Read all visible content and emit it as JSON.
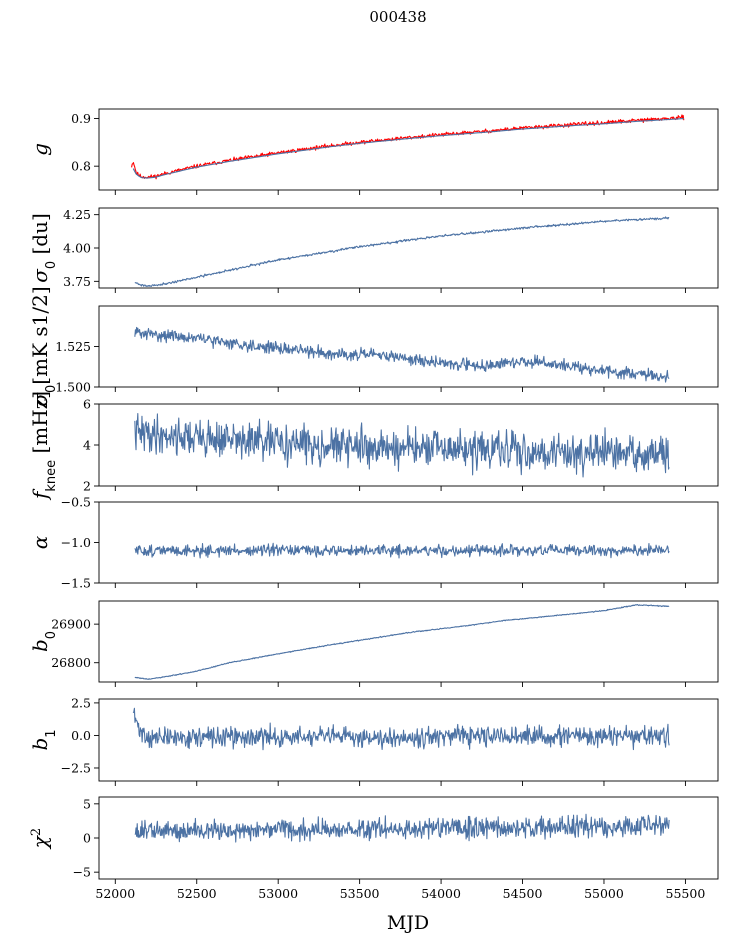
{
  "figure": {
    "title": "000438",
    "xlabel": "MJD"
  },
  "colors": {
    "series": "#4c72a4",
    "fit": "#ff0000"
  },
  "chart_data": [
    {
      "type": "line",
      "ylabel": "g",
      "ylabel_sub": "",
      "ylabel_sup": "",
      "ylabel_rest": "",
      "xlim": [
        51900,
        55700
      ],
      "ylim": [
        0.75,
        0.92
      ],
      "yticks": [
        0.8,
        0.9
      ],
      "ytick_labels": [
        "0.8",
        "0.9"
      ],
      "series": [
        {
          "style": "fit",
          "noise": 0.002,
          "seed": 11,
          "x": [
            52100,
            52110,
            52130,
            52160,
            52200,
            52250,
            52300,
            52400,
            52500,
            52700,
            53000,
            53300,
            53500,
            53800,
            54000,
            54300,
            54500,
            54800,
            55000,
            55200,
            55400,
            55490
          ],
          "y": [
            0.8,
            0.81,
            0.785,
            0.778,
            0.777,
            0.779,
            0.784,
            0.792,
            0.8,
            0.812,
            0.828,
            0.842,
            0.85,
            0.86,
            0.866,
            0.874,
            0.88,
            0.887,
            0.891,
            0.896,
            0.9,
            0.902
          ]
        },
        {
          "style": "data",
          "noise": 0.0,
          "seed": 12,
          "x": [
            52110,
            52130,
            52160,
            52200,
            52250,
            52300,
            52400,
            52500,
            52700,
            53000,
            53300,
            53500,
            53800,
            54000,
            54300,
            54500,
            54800,
            55000,
            55200,
            55400,
            55490
          ],
          "y": [
            0.795,
            0.782,
            0.776,
            0.775,
            0.777,
            0.782,
            0.79,
            0.798,
            0.81,
            0.826,
            0.84,
            0.848,
            0.858,
            0.864,
            0.872,
            0.878,
            0.885,
            0.889,
            0.894,
            0.898,
            0.9
          ]
        }
      ]
    },
    {
      "type": "line",
      "ylabel": "σ",
      "ylabel_sub": "0",
      "ylabel_sup": "",
      "ylabel_rest": " [du]",
      "xlim": [
        51900,
        55700
      ],
      "ylim": [
        3.7,
        4.3
      ],
      "yticks": [
        3.75,
        4.0,
        4.25
      ],
      "ytick_labels": [
        "3.75",
        "4.00",
        "4.25"
      ],
      "series": [
        {
          "style": "data",
          "noise": 0.004,
          "seed": 21,
          "x": [
            52120,
            52150,
            52200,
            52300,
            52500,
            52800,
            53000,
            53300,
            53500,
            54000,
            54500,
            55000,
            55400
          ],
          "y": [
            3.745,
            3.725,
            3.715,
            3.73,
            3.78,
            3.86,
            3.91,
            3.97,
            4.01,
            4.09,
            4.15,
            4.2,
            4.225
          ]
        }
      ]
    },
    {
      "type": "line",
      "ylabel": "σ",
      "ylabel_sub": "0",
      "ylabel_sup": "",
      "ylabel_rest": "[mK s1/2]",
      "xlim": [
        51900,
        55700
      ],
      "ylim": [
        1.5,
        1.55
      ],
      "yticks": [
        1.5,
        1.525
      ],
      "ytick_labels": [
        "1.500",
        "1.525"
      ],
      "series": [
        {
          "style": "data",
          "noise": 0.0018,
          "seed": 31,
          "x": [
            52120,
            52150,
            52300,
            52500,
            52800,
            53000,
            53300,
            53500,
            53700,
            53900,
            54100,
            54300,
            54500,
            54700,
            54900,
            55100,
            55300,
            55400
          ],
          "y": [
            1.535,
            1.533,
            1.532,
            1.53,
            1.526,
            1.524,
            1.521,
            1.52,
            1.519,
            1.516,
            1.514,
            1.513,
            1.516,
            1.514,
            1.511,
            1.509,
            1.507,
            1.506
          ]
        }
      ]
    },
    {
      "type": "line",
      "ylabel": "f",
      "ylabel_sub": "knee",
      "ylabel_sup": "",
      "ylabel_rest": " [mHz]",
      "xlim": [
        51900,
        55700
      ],
      "ylim": [
        2,
        6
      ],
      "yticks": [
        2,
        4,
        6
      ],
      "ytick_labels": [
        "2",
        "4",
        "6"
      ],
      "series": [
        {
          "style": "data",
          "noise": 0.45,
          "seed": 41,
          "x": [
            52120,
            52300,
            52600,
            53000,
            53500,
            54000,
            54500,
            55000,
            55400
          ],
          "y": [
            4.6,
            4.5,
            4.3,
            4.1,
            3.9,
            3.8,
            3.7,
            3.6,
            3.5
          ]
        }
      ]
    },
    {
      "type": "line",
      "ylabel": "α",
      "ylabel_sub": "",
      "ylabel_sup": "",
      "ylabel_rest": "",
      "xlim": [
        51900,
        55700
      ],
      "ylim": [
        -1.5,
        -0.5
      ],
      "yticks": [
        -1.5,
        -1.0,
        -0.5
      ],
      "ytick_labels": [
        "−1.5",
        "−1.0",
        "−0.5"
      ],
      "series": [
        {
          "style": "data",
          "noise": 0.035,
          "seed": 51,
          "x": [
            52120,
            55400
          ],
          "y": [
            -1.1,
            -1.1
          ]
        }
      ]
    },
    {
      "type": "line",
      "ylabel": "b",
      "ylabel_sub": "0",
      "ylabel_sup": "",
      "ylabel_rest": "",
      "xlim": [
        51900,
        55700
      ],
      "ylim": [
        26750,
        26960
      ],
      "yticks": [
        26800,
        26900
      ],
      "ytick_labels": [
        "26800",
        "26900"
      ],
      "series": [
        {
          "style": "data",
          "noise": 0.6,
          "seed": 61,
          "x": [
            52120,
            52200,
            52300,
            52500,
            52700,
            53000,
            53300,
            53500,
            53800,
            54100,
            54400,
            54700,
            55000,
            55200,
            55400
          ],
          "y": [
            26762,
            26757,
            26763,
            26778,
            26800,
            26823,
            26845,
            26858,
            26878,
            26893,
            26910,
            26922,
            26935,
            26950,
            26946
          ]
        }
      ]
    },
    {
      "type": "line",
      "ylabel": "b",
      "ylabel_sub": "1",
      "ylabel_sup": "",
      "ylabel_rest": "",
      "xlim": [
        51900,
        55700
      ],
      "ylim": [
        -3.5,
        2.8
      ],
      "yticks": [
        -2.5,
        0.0,
        2.5
      ],
      "ytick_labels": [
        "−2.5",
        "0.0",
        "2.5"
      ],
      "series": [
        {
          "style": "data",
          "noise": 0.38,
          "seed": 71,
          "x": [
            52110,
            52140,
            52200,
            52400,
            55400
          ],
          "y": [
            1.8,
            0.6,
            -0.2,
            -0.15,
            -0.05
          ]
        }
      ]
    },
    {
      "type": "line",
      "ylabel": "χ",
      "ylabel_sub": "",
      "ylabel_sup": "2",
      "ylabel_rest": "",
      "xlim": [
        51900,
        55700
      ],
      "ylim": [
        -6,
        6
      ],
      "yticks": [
        -5,
        0,
        5
      ],
      "ytick_labels": [
        "−5",
        "0",
        "5"
      ],
      "xticks": [
        52000,
        52500,
        53000,
        53500,
        54000,
        54500,
        55000,
        55500
      ],
      "xtick_labels": [
        "52000",
        "52500",
        "53000",
        "53500",
        "54000",
        "54500",
        "55000",
        "55500"
      ],
      "series": [
        {
          "style": "data",
          "noise": 0.75,
          "seed": 81,
          "x": [
            52120,
            52500,
            53000,
            53500,
            54000,
            54500,
            55000,
            55400
          ],
          "y": [
            1.0,
            1.1,
            1.2,
            1.3,
            1.4,
            1.5,
            1.6,
            1.7
          ]
        }
      ]
    }
  ]
}
